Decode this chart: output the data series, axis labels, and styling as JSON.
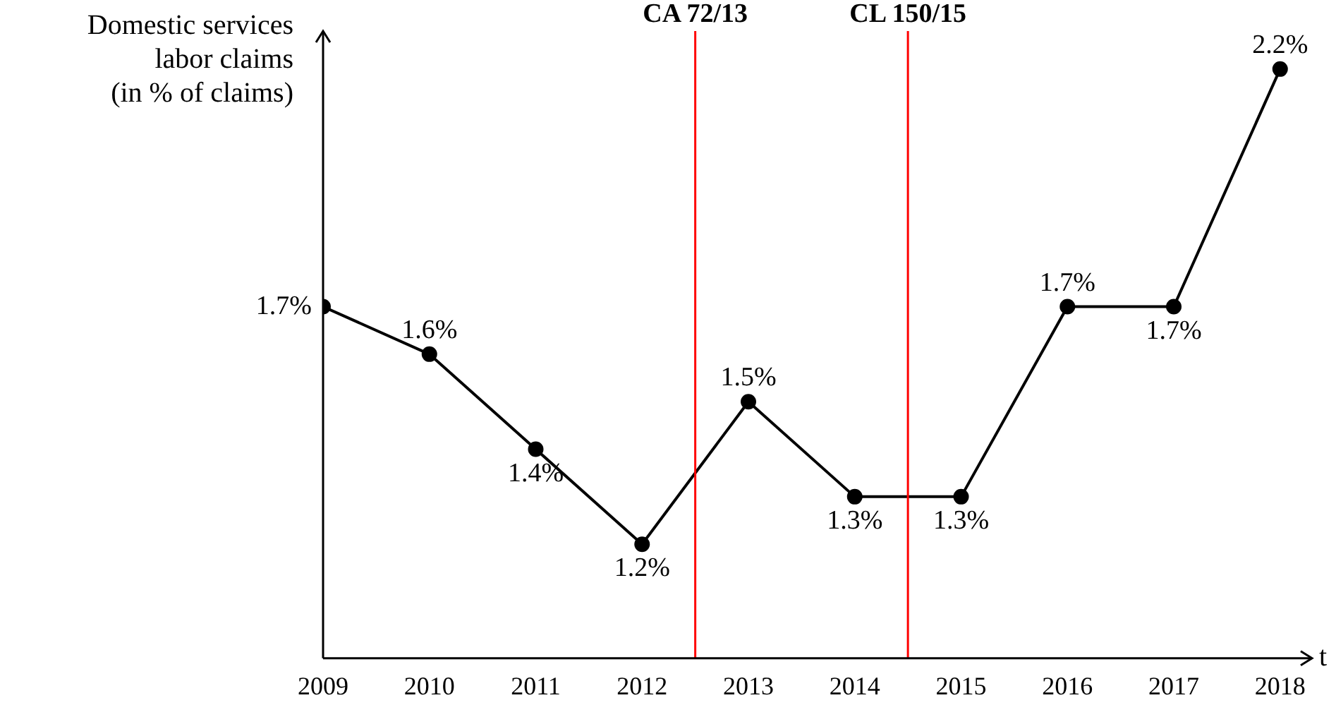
{
  "chart_data": {
    "type": "line",
    "xlabel": "t",
    "ylabel": "Domestic services\nlabor claims\n(in % of claims)",
    "x": [
      2009,
      2010,
      2011,
      2012,
      2013,
      2014,
      2015,
      2016,
      2017,
      2018
    ],
    "series": [
      {
        "color": "#000000",
        "values": [
          1.7,
          1.6,
          1.4,
          1.2,
          1.5,
          1.3,
          1.3,
          1.7,
          1.7,
          2.2
        ],
        "value_labels": [
          "1.7%",
          "1.6%",
          "1.4%",
          "1.2%",
          "1.5%",
          "1.3%",
          "1.3%",
          "1.7%",
          "1.7%",
          "2.2%"
        ]
      }
    ],
    "xlim": [
      2009,
      2018.3
    ],
    "xticks": [
      2009,
      2010,
      2011,
      2012,
      2013,
      2014,
      2015,
      2016,
      2017,
      2018
    ],
    "ylim": [
      0.96,
      2.28
    ],
    "tick_labels": "x",
    "grid": false,
    "legend": false,
    "marker": "circle",
    "line_style": "solid",
    "ref_lines": [
      {
        "axis": "x",
        "value": 2012.5,
        "label": "CA 72/13",
        "color": "#ff0000"
      },
      {
        "axis": "x",
        "value": 2014.5,
        "label": "CL 150/15",
        "color": "#ff0000"
      }
    ]
  }
}
